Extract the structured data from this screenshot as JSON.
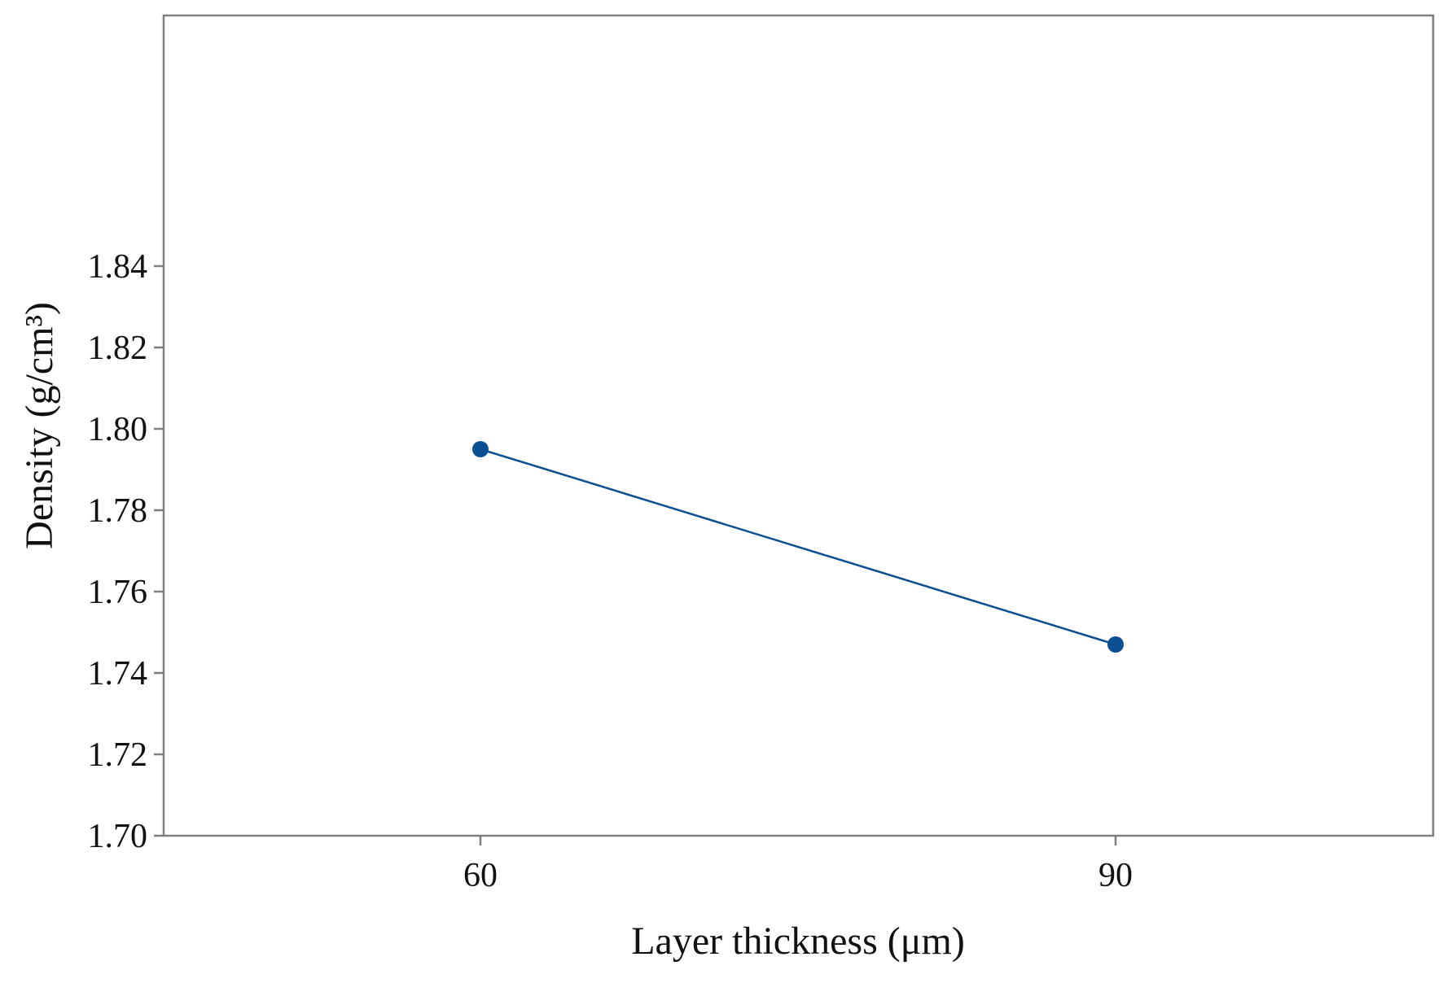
{
  "chart_data": {
    "type": "line",
    "title": "",
    "xlabel": "Layer thickness (μm)",
    "ylabel": "Density (g/cm³)",
    "x_ticks": [
      "60",
      "90"
    ],
    "y_ticks": [
      "1.70",
      "1.72",
      "1.74",
      "1.76",
      "1.78",
      "1.80",
      "1.82",
      "1.84"
    ],
    "ylim": [
      1.7,
      1.85
    ],
    "grid": false,
    "series": [
      {
        "color": "#0b4f93",
        "points": [
          {
            "x": 60,
            "y": 1.795
          },
          {
            "x": 90,
            "y": 1.747
          }
        ]
      }
    ]
  }
}
